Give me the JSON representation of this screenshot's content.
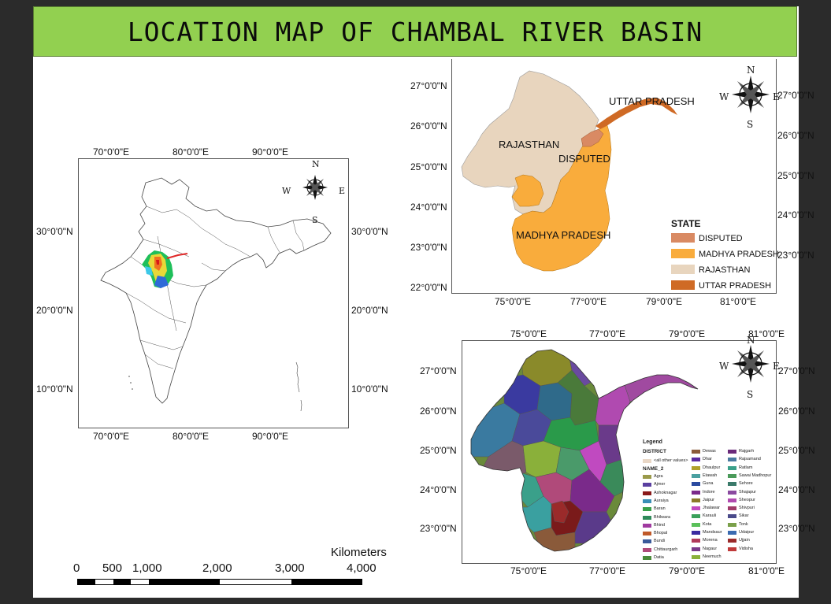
{
  "title": "LOCATION MAP OF CHAMBAL RIVER BASIN",
  "india_map": {
    "lon_labels": [
      "70°0'0\"E",
      "80°0'0\"E",
      "90°0'0\"E"
    ],
    "lat_labels_left": [
      "30°0'0\"N",
      "20°0'0\"N",
      "10°0'0\"N"
    ],
    "lat_labels_right": [
      "30°0'0\"N",
      "20°0'0\"N",
      "10°0'0\"N"
    ],
    "compass": {
      "n": "N",
      "s": "S",
      "e": "E",
      "w": "W"
    }
  },
  "scale_bar": {
    "title": "Kilometers",
    "ticks": [
      "0",
      "500",
      "1,000",
      "2,000",
      "3,000",
      "4,000"
    ]
  },
  "state_map": {
    "lat_labels_left": [
      "27°0'0\"N",
      "26°0'0\"N",
      "25°0'0\"N",
      "24°0'0\"N",
      "23°0'0\"N",
      "22°0'0\"N"
    ],
    "lat_labels_right": [
      "27°0'0\"N",
      "26°0'0\"N",
      "25°0'0\"N",
      "24°0'0\"N",
      "23°0'0\"N"
    ],
    "lon_labels": [
      "75°0'0\"E",
      "77°0'0\"E",
      "79°0'0\"E",
      "81°0'0\"E"
    ],
    "region_labels": {
      "up": "UTTAR PRADESH",
      "raj": "RAJASTHAN",
      "disp": "DISPUTED",
      "mp": "MADHYA PRADESH"
    },
    "legend": {
      "title": "STATE",
      "items": [
        {
          "label": "DISPUTED",
          "color": "#d98a63"
        },
        {
          "label": "MADHYA PRADESH",
          "color": "#f9ac3c"
        },
        {
          "label": "RAJASTHAN",
          "color": "#e8d5be"
        },
        {
          "label": "UTTAR PRADESH",
          "color": "#cf6a25"
        }
      ]
    },
    "compass": {
      "n": "N",
      "s": "S",
      "e": "E",
      "w": "W"
    }
  },
  "district_map": {
    "lon_labels_top": [
      "75°0'0\"E",
      "77°0'0\"E",
      "79°0'0\"E",
      "81°0'0\"E"
    ],
    "lon_labels_bottom": [
      "75°0'0\"E",
      "77°0'0\"E",
      "79°0'0\"E",
      "81°0'0\"E"
    ],
    "lat_labels_left": [
      "27°0'0\"N",
      "26°0'0\"N",
      "25°0'0\"N",
      "24°0'0\"N",
      "23°0'0\"N"
    ],
    "lat_labels_right": [
      "27°0'0\"N",
      "26°0'0\"N",
      "25°0'0\"N",
      "24°0'0\"N",
      "23°0'0\"N"
    ],
    "legend": {
      "title": "Legend",
      "field": "DISTRICT",
      "other_values": "<all other values>",
      "sub_field": "NAME_2",
      "columns": [
        [
          {
            "label": "Agra",
            "color": "#9a9a4a"
          },
          {
            "label": "Ajmer",
            "color": "#5a3fa0"
          },
          {
            "label": "Ashoknagar",
            "color": "#8a1a1a"
          },
          {
            "label": "Auraiya",
            "color": "#3a8fb7"
          },
          {
            "label": "Baran",
            "color": "#3aa04a"
          },
          {
            "label": "Bhilwara",
            "color": "#2f8a5a"
          },
          {
            "label": "Bhind",
            "color": "#a03aa0"
          },
          {
            "label": "Bhopal",
            "color": "#c05a2a"
          },
          {
            "label": "Bundi",
            "color": "#3a5a9a"
          },
          {
            "label": "Chittaurgarh",
            "color": "#b04a7a"
          },
          {
            "label": "Datia",
            "color": "#4a8a3a"
          }
        ],
        [
          {
            "label": "Dewas",
            "color": "#8a5a3a"
          },
          {
            "label": "Dhar",
            "color": "#5a2aa0"
          },
          {
            "label": "Dhaulpur",
            "color": "#b0a02a"
          },
          {
            "label": "Etawah",
            "color": "#4aa0a0"
          },
          {
            "label": "Guna",
            "color": "#2a4aa0"
          },
          {
            "label": "Indore",
            "color": "#7a2a8a"
          },
          {
            "label": "Jaipur",
            "color": "#8a7a2a"
          },
          {
            "label": "Jhalawar",
            "color": "#c04ac0"
          },
          {
            "label": "Karauli",
            "color": "#3aa05a"
          },
          {
            "label": "Kota",
            "color": "#5ac05a"
          },
          {
            "label": "Mandsaur",
            "color": "#3a2aa0"
          },
          {
            "label": "Morena",
            "color": "#b03a5a"
          },
          {
            "label": "Nagaur",
            "color": "#7a3a8a"
          },
          {
            "label": "Neemuch",
            "color": "#8ab03a"
          }
        ],
        [
          {
            "label": "Rajgarh",
            "color": "#6a2a7a"
          },
          {
            "label": "Rajsamand",
            "color": "#4a7aa0"
          },
          {
            "label": "Ratlam",
            "color": "#3aa08a"
          },
          {
            "label": "Sawai Madhopur",
            "color": "#4a9a5a"
          },
          {
            "label": "Sehore",
            "color": "#3a7a6a"
          },
          {
            "label": "Shajapur",
            "color": "#8a4aa0"
          },
          {
            "label": "Sheopur",
            "color": "#b04ab0"
          },
          {
            "label": "Shivpuri",
            "color": "#a03a6a"
          },
          {
            "label": "Sikar",
            "color": "#4a4a8a"
          },
          {
            "label": "Tonk",
            "color": "#7aa04a"
          },
          {
            "label": "Udaipur",
            "color": "#3a6ab0"
          },
          {
            "label": "Ujjain",
            "color": "#9a2a2a"
          },
          {
            "label": "Vidisha",
            "color": "#c03a3a"
          }
        ]
      ]
    },
    "compass": {
      "n": "N",
      "s": "S",
      "e": "E",
      "w": "W"
    }
  }
}
